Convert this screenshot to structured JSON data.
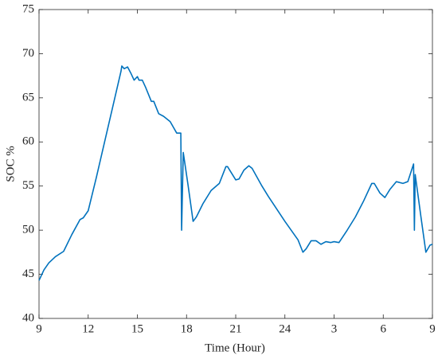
{
  "chart_data": {
    "type": "line",
    "xlabel": "Time (Hour)",
    "ylabel": "SOC %",
    "xlim": [
      9,
      33
    ],
    "ylim": [
      40,
      75
    ],
    "xticks": [
      9,
      12,
      15,
      18,
      21,
      24,
      {
        "value": 27,
        "label": "3"
      },
      {
        "value": 30,
        "label": "6"
      },
      {
        "value": 33,
        "label": "9"
      }
    ],
    "yticks": [
      40,
      45,
      50,
      55,
      60,
      65,
      70,
      75
    ],
    "series": [
      {
        "color": "#0072bd",
        "x": [
          9.0,
          9.3,
          9.6,
          10.0,
          10.5,
          11.0,
          11.5,
          11.7,
          12.0,
          12.5,
          13.0,
          13.5,
          14.0,
          14.05,
          14.2,
          14.4,
          14.6,
          14.8,
          15.0,
          15.1,
          15.3,
          15.5,
          15.85,
          16.0,
          16.3,
          16.6,
          17.0,
          17.4,
          17.65,
          17.7,
          17.8,
          18.1,
          18.4,
          18.6,
          19.0,
          19.5,
          20.0,
          20.4,
          20.5,
          21.0,
          21.2,
          21.5,
          21.8,
          22.0,
          22.3,
          22.6,
          23.0,
          24.0,
          24.8,
          25.1,
          25.3,
          25.6,
          25.9,
          26.2,
          26.5,
          26.8,
          27.0,
          27.3,
          27.8,
          28.3,
          28.8,
          29.3,
          29.45,
          29.8,
          30.1,
          30.4,
          30.8,
          31.2,
          31.5,
          31.85,
          31.9,
          31.95,
          32.3,
          32.6,
          32.85,
          33.0
        ],
        "values": [
          44.3,
          45.5,
          46.3,
          47.0,
          47.6,
          49.5,
          51.2,
          51.4,
          52.2,
          56.0,
          60.0,
          64.0,
          68.0,
          68.6,
          68.3,
          68.5,
          67.8,
          67.0,
          67.4,
          67.0,
          67.0,
          66.2,
          64.6,
          64.6,
          63.2,
          62.9,
          62.3,
          61.0,
          61.0,
          50.0,
          58.8,
          55.0,
          51.0,
          51.5,
          53.0,
          54.5,
          55.3,
          57.2,
          57.2,
          55.7,
          55.8,
          56.8,
          57.3,
          57.0,
          56.0,
          55.0,
          53.8,
          51.0,
          48.9,
          47.5,
          47.9,
          48.8,
          48.8,
          48.4,
          48.7,
          48.6,
          48.7,
          48.6,
          50.0,
          51.5,
          53.3,
          55.3,
          55.3,
          54.2,
          53.7,
          54.6,
          55.5,
          55.3,
          55.5,
          57.5,
          50.0,
          56.3,
          51.5,
          47.5,
          48.3,
          48.4
        ]
      }
    ]
  }
}
